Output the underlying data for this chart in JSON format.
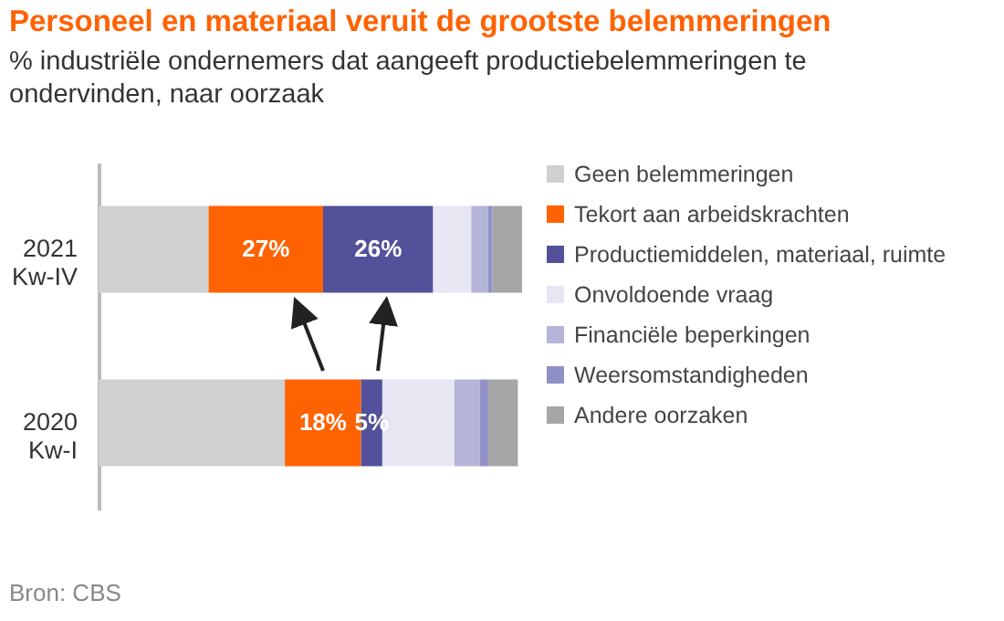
{
  "chart_data": {
    "type": "bar",
    "orientation": "horizontal",
    "stacked": true,
    "title": "Personeel en materiaal veruit de grootste belemmeringen",
    "subtitle": "% industriële ondernemers dat aangeeft productiebelemmeringen te ondervinden, naar oorzaak",
    "categories": [
      "2021 Kw-IV",
      "2020 Kw-I"
    ],
    "series": [
      {
        "name": "Geen belemmeringen",
        "color": "#d0d0d0",
        "values": [
          26,
          44
        ]
      },
      {
        "name": "Tekort aan arbeidskrachten",
        "color": "#ff6200",
        "values": [
          27,
          18
        ],
        "value_labels": [
          "27%",
          "18%"
        ]
      },
      {
        "name": "Productiemiddelen, materiaal, ruimte",
        "color": "#525199",
        "values": [
          26,
          5
        ],
        "value_labels": [
          "26%",
          "5%"
        ]
      },
      {
        "name": "Onvoldoende vraag",
        "color": "#e8e6f3",
        "values": [
          9,
          17
        ]
      },
      {
        "name": "Financiële beperkingen",
        "color": "#b5b5d9",
        "values": [
          4,
          6
        ]
      },
      {
        "name": "Weersomstandigheden",
        "color": "#9190c6",
        "values": [
          1,
          2
        ]
      },
      {
        "name": "Andere oorzaken",
        "color": "#a6a6a6",
        "values": [
          7,
          7
        ]
      }
    ],
    "legend": "right",
    "annotations": [
      "Bron: CBS"
    ]
  }
}
